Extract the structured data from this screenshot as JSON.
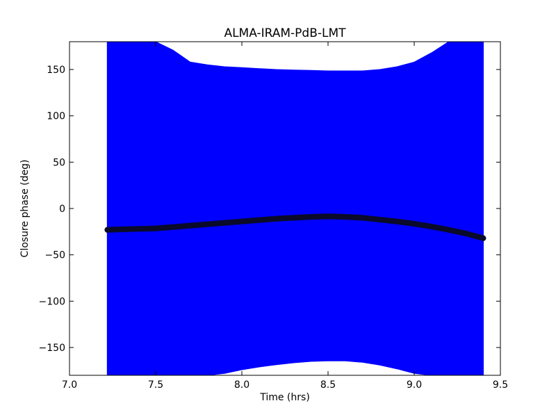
{
  "chart_data": {
    "type": "scatter",
    "title": "ALMA-IRAM-PdB-LMT",
    "xlabel": "Time (hrs)",
    "ylabel": "Closure phase (deg)",
    "xlim": [
      7.0,
      9.5
    ],
    "ylim": [
      -180,
      180
    ],
    "xticks": [
      7.0,
      7.5,
      8.0,
      8.5,
      9.0,
      9.5
    ],
    "xtick_labels": [
      "7.0",
      "7.5",
      "8.0",
      "8.5",
      "9.0",
      "9.5"
    ],
    "yticks": [
      -150,
      -100,
      -50,
      0,
      50,
      100,
      150
    ],
    "ytick_labels": [
      "−150",
      "−100",
      "−50",
      "0",
      "50",
      "100",
      "150"
    ],
    "grid": false,
    "colors": {
      "points": "#0a0a2a",
      "errorbars": "#0000ff"
    },
    "series": [
      {
        "x": [
          7.22,
          7.3,
          7.4,
          7.5,
          7.6,
          7.7,
          7.8,
          7.9,
          8.0,
          8.1,
          8.2,
          8.3,
          8.4,
          8.5,
          8.6,
          8.7,
          8.8,
          8.9,
          9.0,
          9.1,
          9.2,
          9.3,
          9.4
        ],
        "y": [
          -23,
          -22.5,
          -22,
          -21.5,
          -20,
          -18.5,
          -17,
          -15.5,
          -14,
          -12.5,
          -11,
          -10,
          -9,
          -8.5,
          -9,
          -10,
          -12,
          -14,
          -16.5,
          -19.5,
          -23,
          -27,
          -32
        ],
        "err_upper": [
          180,
          180,
          180,
          180,
          171,
          158,
          155,
          153,
          152,
          151,
          150,
          149.5,
          149,
          148.5,
          148.5,
          148.5,
          150,
          153,
          158,
          168,
          180,
          180,
          180
        ],
        "err_lower": [
          -180,
          -180,
          -180,
          -180,
          -180,
          -180,
          -180,
          -178,
          -174,
          -171,
          -168.5,
          -166.5,
          -165,
          -164.5,
          -164.5,
          -166,
          -169,
          -173,
          -178,
          -180,
          -180,
          -180,
          -180
        ]
      }
    ]
  }
}
